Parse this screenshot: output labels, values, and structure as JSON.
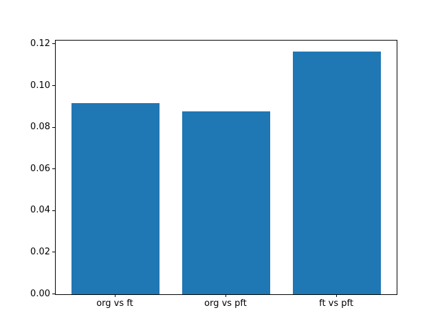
{
  "chart_data": {
    "type": "bar",
    "categories": [
      "org vs ft",
      "org vs pft",
      "ft vs pft"
    ],
    "values": [
      0.0916,
      0.0877,
      0.1164
    ],
    "title": "",
    "xlabel": "",
    "ylabel": "",
    "xlim": [
      -0.54,
      2.54
    ],
    "ylim": [
      0,
      0.1218
    ],
    "yticks": [
      0.0,
      0.02,
      0.04,
      0.06,
      0.08,
      0.1,
      0.12
    ],
    "ytick_labels": [
      "0.00",
      "0.02",
      "0.04",
      "0.06",
      "0.08",
      "0.10",
      "0.12"
    ],
    "bar_width": 0.8,
    "bar_color": "#1f77b4",
    "spine_color": "#000000",
    "background_color": "#ffffff",
    "grid": false,
    "legend_position": "none"
  }
}
